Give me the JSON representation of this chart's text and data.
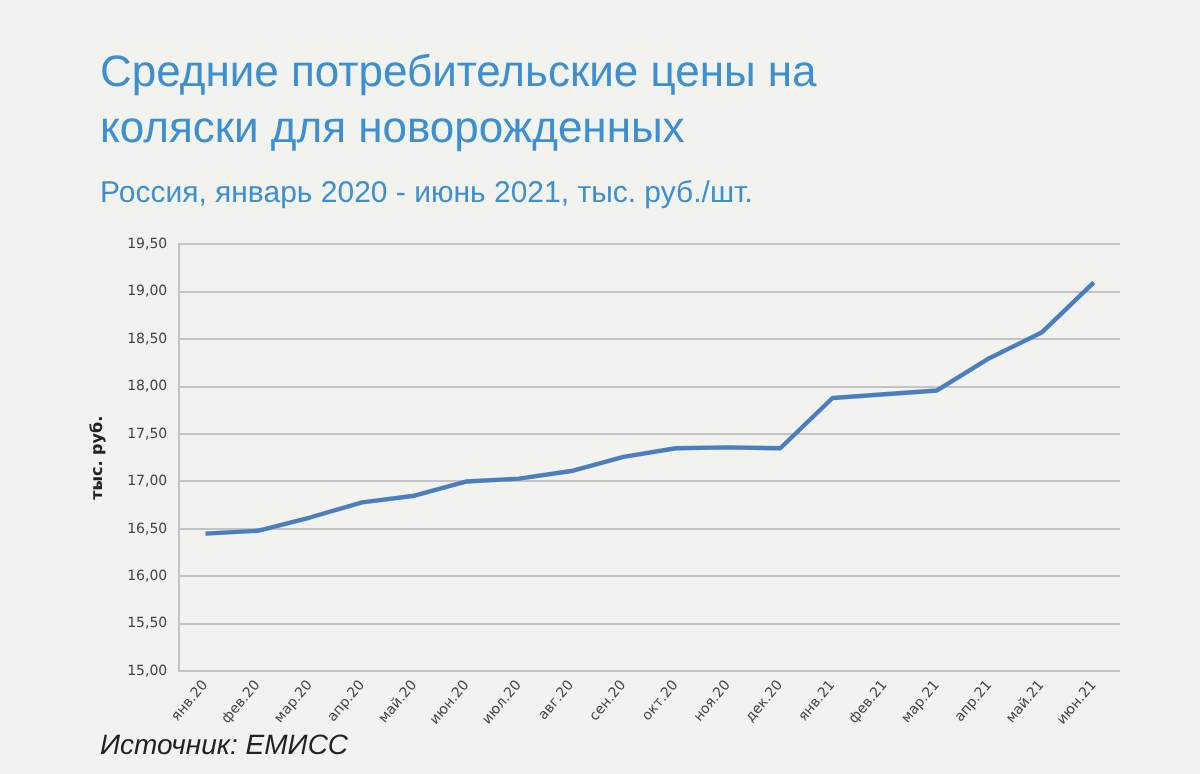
{
  "chart_data": {
    "type": "line",
    "title": "Средние потребительские цены на коляски для новорожденных",
    "subtitle": "Россия, январь 2020 - июнь 2021, тыс. руб./шт.",
    "ylabel": "тыс. руб.",
    "annotations": [
      "Источник: ЕМИСС"
    ],
    "categories": [
      "янв.20",
      "фев.20",
      "мар.20",
      "апр.20",
      "май.20",
      "июн.20",
      "июл.20",
      "авг.20",
      "сен.20",
      "окт.20",
      "ноя.20",
      "дек.20",
      "янв.21",
      "фев.21",
      "мар.21",
      "апр.21",
      "май.21",
      "июн.21"
    ],
    "series": [
      {
        "color": "#4a7ebf",
        "values": [
          16.45,
          16.48,
          16.62,
          16.78,
          16.85,
          17.0,
          17.03,
          17.11,
          17.26,
          17.35,
          17.36,
          17.35,
          17.88,
          17.92,
          17.96,
          18.3,
          18.57,
          19.1
        ]
      }
    ],
    "ylim": [
      15,
      19.5
    ],
    "yticks": [
      {
        "value": 15,
        "label": "15,00"
      },
      {
        "value": 15.5,
        "label": "15,50"
      },
      {
        "value": 16,
        "label": "16,00"
      },
      {
        "value": 16.5,
        "label": "16,50"
      },
      {
        "value": 17,
        "label": "17,00"
      },
      {
        "value": 17.5,
        "label": "17,50"
      },
      {
        "value": 18,
        "label": "18,00"
      },
      {
        "value": 18.5,
        "label": "18,50"
      },
      {
        "value": 19,
        "label": "19,00"
      },
      {
        "value": 19.5,
        "label": "19,50"
      }
    ],
    "grid": "y",
    "legend": false,
    "marker": "none",
    "line_style": "solid"
  }
}
